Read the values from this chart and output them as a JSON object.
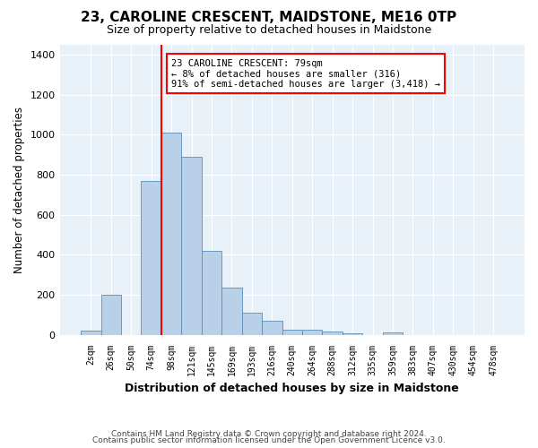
{
  "title": "23, CAROLINE CRESCENT, MAIDSTONE, ME16 0TP",
  "subtitle": "Size of property relative to detached houses in Maidstone",
  "xlabel": "Distribution of detached houses by size in Maidstone",
  "ylabel": "Number of detached properties",
  "categories": [
    "2sqm",
    "26sqm",
    "50sqm",
    "74sqm",
    "98sqm",
    "121sqm",
    "145sqm",
    "169sqm",
    "193sqm",
    "216sqm",
    "240sqm",
    "264sqm",
    "288sqm",
    "312sqm",
    "335sqm",
    "359sqm",
    "383sqm",
    "407sqm",
    "430sqm",
    "454sqm",
    "478sqm"
  ],
  "values": [
    20,
    200,
    0,
    770,
    1010,
    890,
    420,
    235,
    110,
    70,
    25,
    25,
    18,
    8,
    0,
    12,
    0,
    0,
    0,
    0,
    0
  ],
  "bar_color": "#b8d0e8",
  "bar_edge_color": "#5b8db8",
  "vline_color": "red",
  "annotation_text": "23 CAROLINE CRESCENT: 79sqm\n← 8% of detached houses are smaller (316)\n91% of semi-detached houses are larger (3,418) →",
  "annotation_box_edge": "red",
  "annotation_box_face": "white",
  "ylim": [
    0,
    1450
  ],
  "yticks": [
    0,
    200,
    400,
    600,
    800,
    1000,
    1200,
    1400
  ],
  "bg_color": "#e8f0f8",
  "footer1": "Contains HM Land Registry data © Crown copyright and database right 2024.",
  "footer2": "Contains public sector information licensed under the Open Government Licence v3.0."
}
